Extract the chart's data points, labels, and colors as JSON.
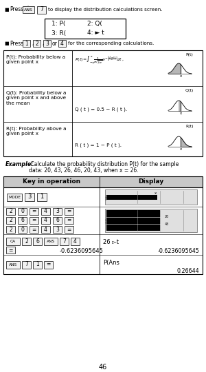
{
  "menu_items_line1": [
    "1: P(",
    "2: Q("
  ],
  "menu_items_line2": [
    "3: R(",
    "4: ► t"
  ],
  "press_keys": [
    "1",
    "2",
    "3",
    "4"
  ],
  "row1_label1": "P(t): Probability below a",
  "row1_label2": "given point x",
  "row1_curve_label": "P(t)",
  "row2_label1": "Q(t): Probability below a",
  "row2_label2": "given point x and above",
  "row2_label3": "the mean",
  "row2_formula": "Q ( t ) = 0.5 − R ( t ).",
  "row2_curve_label": "Q(t)",
  "row3_label1": "R(t): Probability above a",
  "row3_label2": "given point x",
  "row3_formula": "R ( t ) = 1 − P ( t ).",
  "row3_curve_label": "R(t)",
  "example_bold": "Example:",
  "example_rest": " Calculate the probability distribution P(t) for the sample",
  "example_line2": "data: 20, 43, 26, 46, 20, 43, when x = 26.",
  "table_header1": "Key in operation",
  "table_header2": "Display",
  "display_3_top": "26 ▻t",
  "display_3_bot": "-0.6236095645",
  "display_4_top": "P(Ans",
  "display_4_bot": "0.26644",
  "page_num": "46",
  "bg_color": "#ffffff",
  "text_color": "#000000",
  "gray_header": "#c8c8c8",
  "key_bg": "#f2f2f2",
  "key_border": "#444444"
}
